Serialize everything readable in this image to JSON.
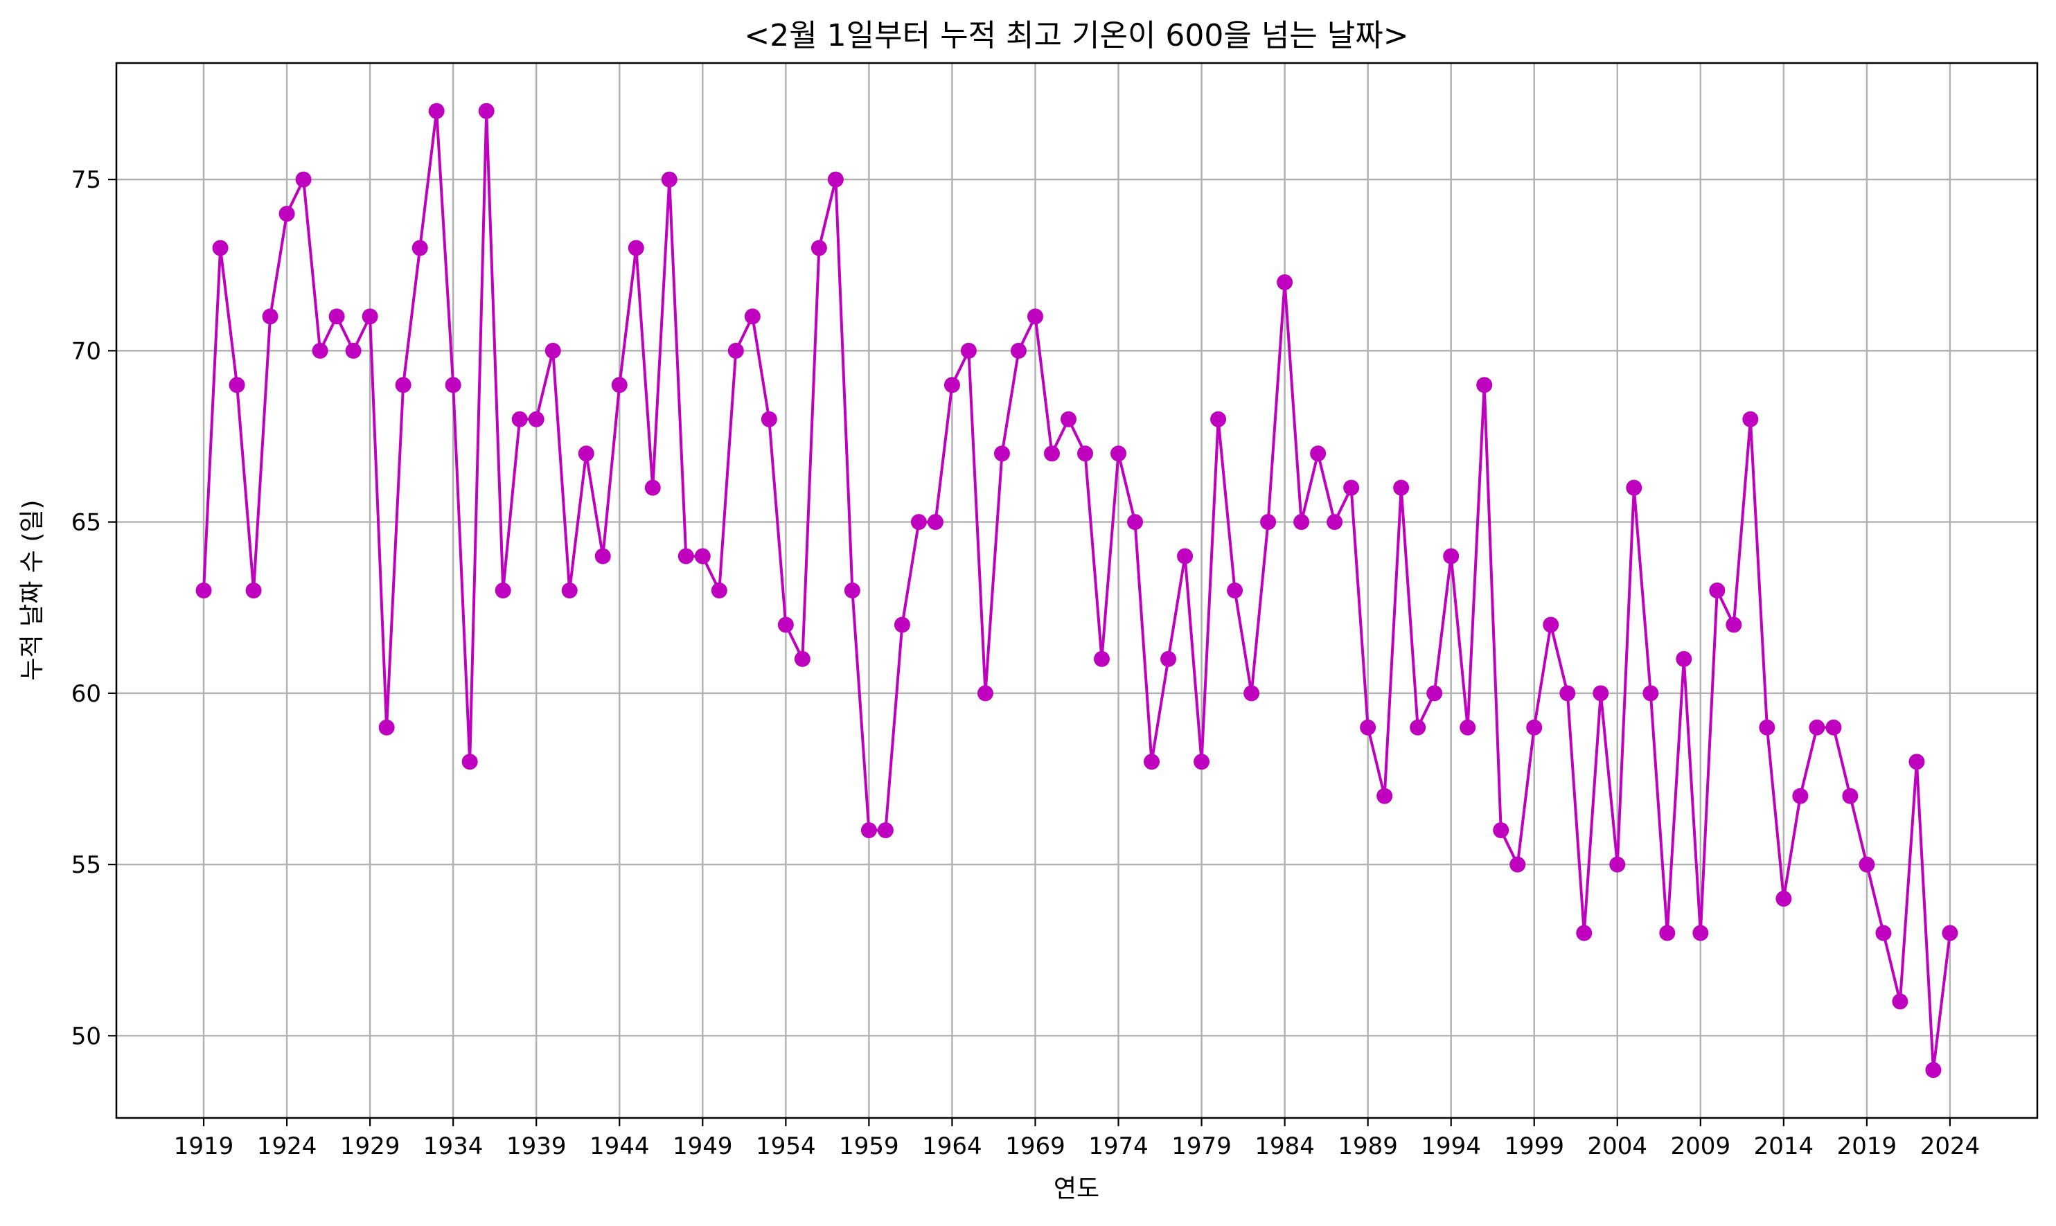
{
  "chart_data": {
    "type": "line",
    "title": "<2월 1일부터 누적 최고 기온이 600을 넘는 날짜>",
    "xlabel": "연도",
    "ylabel": "누적 날짜 수 (일)",
    "xlim": [
      1913.75,
      2029.25
    ],
    "ylim": [
      47.6,
      78.4
    ],
    "grid": true,
    "line_color": "#bf00bf",
    "marker": "circle",
    "x_ticks": [
      "1919",
      "1924",
      "1929",
      "1934",
      "1939",
      "1944",
      "1949",
      "1954",
      "1959",
      "1964",
      "1969",
      "1974",
      "1979",
      "1984",
      "1989",
      "1994",
      "1999",
      "2004",
      "2009",
      "2014",
      "2019",
      "2024"
    ],
    "y_ticks": [
      "50",
      "55",
      "60",
      "65",
      "70",
      "75"
    ],
    "series": [
      {
        "x": [
          1919,
          1920,
          1921,
          1922,
          1923,
          1924,
          1925,
          1926,
          1927,
          1928,
          1929,
          1930,
          1931,
          1932,
          1933,
          1934,
          1935,
          1936,
          1937,
          1938,
          1939,
          1940,
          1941,
          1942,
          1943,
          1944,
          1945,
          1946,
          1947,
          1948,
          1949,
          1950,
          1951,
          1952,
          1953,
          1954,
          1955,
          1956,
          1957,
          1958,
          1959,
          1960,
          1961,
          1962,
          1963,
          1964,
          1965,
          1966,
          1967,
          1968,
          1969,
          1970,
          1971,
          1972,
          1973,
          1974,
          1975,
          1976,
          1977,
          1978,
          1979,
          1980,
          1981,
          1982,
          1983,
          1984,
          1985,
          1986,
          1987,
          1988,
          1989,
          1990,
          1991,
          1992,
          1993,
          1994,
          1995,
          1996,
          1997,
          1998,
          1999,
          2000,
          2001,
          2002,
          2003,
          2004,
          2005,
          2006,
          2007,
          2008,
          2009,
          2010,
          2011,
          2012,
          2013,
          2014,
          2015,
          2016,
          2017,
          2018,
          2019,
          2020,
          2021,
          2022,
          2023,
          2024
        ],
        "values": [
          63,
          73,
          69,
          63,
          71,
          74,
          75,
          70,
          71,
          70,
          71,
          59,
          69,
          73,
          77,
          69,
          58,
          77,
          63,
          68,
          68,
          70,
          63,
          67,
          64,
          69,
          73,
          66,
          75,
          64,
          64,
          63,
          70,
          71,
          68,
          62,
          61,
          73,
          75,
          63,
          56,
          56,
          62,
          65,
          65,
          69,
          70,
          60,
          67,
          70,
          71,
          67,
          68,
          67,
          61,
          67,
          65,
          58,
          61,
          64,
          58,
          68,
          63,
          60,
          65,
          72,
          65,
          67,
          65,
          66,
          59,
          57,
          66,
          59,
          60,
          64,
          59,
          69,
          56,
          55,
          59,
          62,
          60,
          53,
          60,
          55,
          66,
          60,
          53,
          61,
          53,
          63,
          62,
          68,
          59,
          54,
          57,
          59,
          59,
          57,
          55,
          53,
          51,
          58,
          49,
          53
        ]
      }
    ]
  }
}
